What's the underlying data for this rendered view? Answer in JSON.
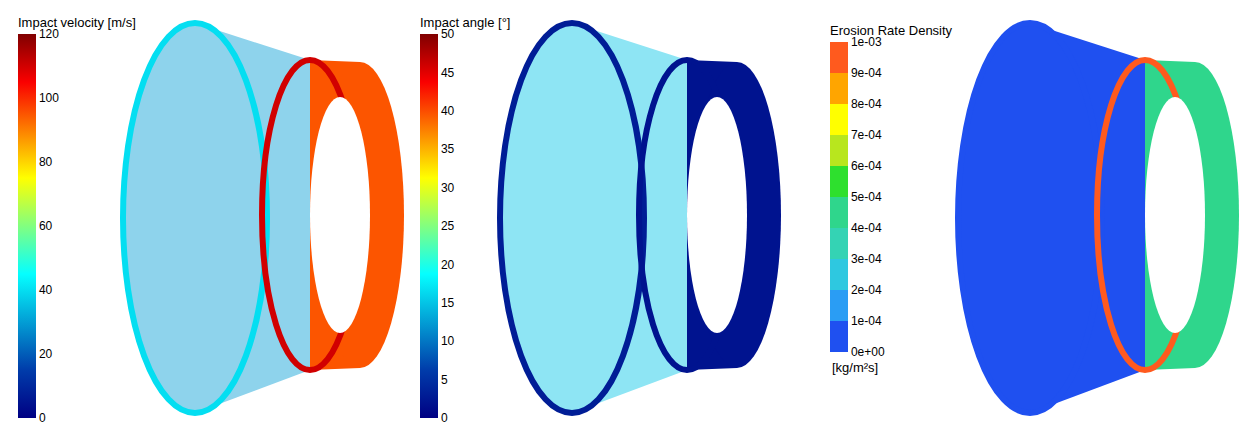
{
  "chart_data": [
    {
      "type": "scatter",
      "colorbar": {
        "title": "Impact velocity [m/s]",
        "range": [
          0,
          120
        ],
        "ticks": [
          0,
          20,
          40,
          60,
          80,
          100,
          120
        ]
      },
      "values": [
        40,
        30,
        110,
        95
      ]
    },
    {
      "type": "scatter",
      "colorbar": {
        "title": "Impact angle [°]",
        "range": [
          0,
          50
        ],
        "ticks": [
          0,
          5,
          10,
          15,
          20,
          25,
          30,
          35,
          40,
          45,
          50
        ]
      },
      "values": [
        3,
        15,
        2,
        2
      ]
    },
    {
      "type": "contour",
      "colorbar": {
        "title": "Erosion Rate Density",
        "units": "[kg/m²s]",
        "range": [
          0,
          0.001
        ],
        "ticks": [
          {
            "value": 0,
            "label": "0e+00"
          },
          {
            "value": 0.0001,
            "label": "1e-04"
          },
          {
            "value": 0.0002,
            "label": "2e-04"
          },
          {
            "value": 0.0003,
            "label": "3e-04"
          },
          {
            "value": 0.0004,
            "label": "4e-04"
          },
          {
            "value": 0.0005,
            "label": "5e-04"
          },
          {
            "value": 0.0006,
            "label": "6e-04"
          },
          {
            "value": 0.0007,
            "label": "7e-04"
          },
          {
            "value": 0.0008,
            "label": "8e-04"
          },
          {
            "value": 0.0009,
            "label": "9e-04"
          },
          {
            "value": 0.001,
            "label": "1e-03"
          }
        ],
        "colors": [
          "#1f50f0",
          "#2a9df4",
          "#2ec8e0",
          "#34d3b4",
          "#2fd68c",
          "#2ee02e",
          "#b8e61e",
          "#ffff00",
          "#ffa500",
          "#ff5a1e"
        ]
      },
      "values": [
        5e-05,
        2e-05,
        0.0009,
        0.0004
      ]
    }
  ]
}
